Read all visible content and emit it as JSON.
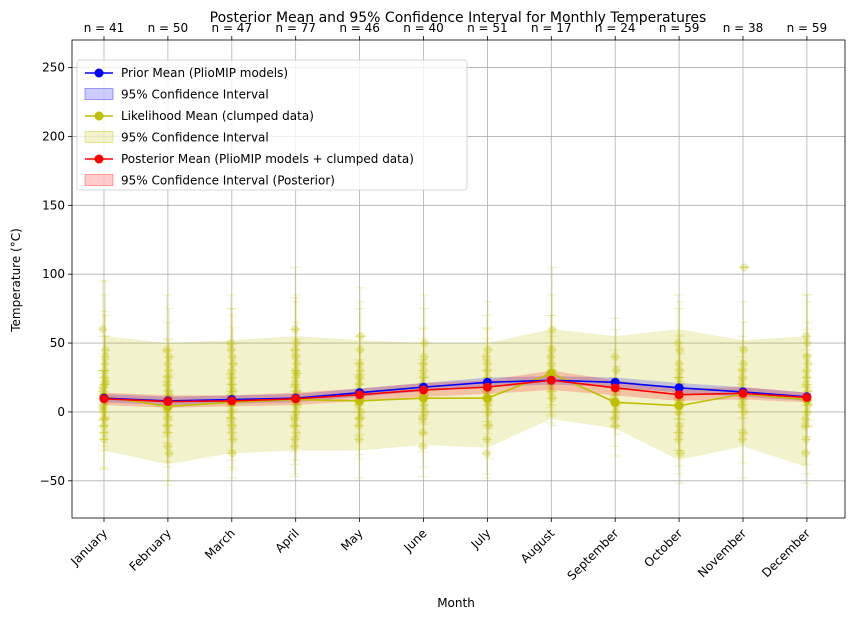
{
  "chart_data": {
    "type": "line",
    "title": "Posterior Mean and 95% Confidence Interval for Monthly Temperatures",
    "xlabel": "Month",
    "ylabel": "Temperature (°C)",
    "ylim": [
      -77,
      270
    ],
    "yticks": [
      -50,
      0,
      50,
      100,
      150,
      200,
      250
    ],
    "grid": true,
    "legend_position": "top-left",
    "categories": [
      "January",
      "February",
      "March",
      "April",
      "May",
      "June",
      "July",
      "August",
      "September",
      "October",
      "November",
      "December"
    ],
    "n_labels": [
      "n = 41",
      "n = 50",
      "n = 47",
      "n = 77",
      "n = 46",
      "n = 40",
      "n = 51",
      "n = 17",
      "n = 24",
      "n = 59",
      "n = 38",
      "n = 59"
    ],
    "series": [
      {
        "name": "Prior Mean (PlioMIP models)",
        "color": "#0000ff",
        "values": [
          10,
          8,
          9,
          10,
          14,
          18,
          21.5,
          23,
          21.5,
          17.5,
          14.5,
          11
        ],
        "ci_label": "95% Confidence Interval",
        "ci_lower": [
          7,
          5,
          6,
          7,
          11,
          15,
          18,
          20,
          18,
          14,
          11,
          8
        ],
        "ci_upper": [
          13,
          11,
          12,
          13,
          17,
          21,
          25,
          26,
          25,
          21,
          18,
          14
        ]
      },
      {
        "name": "Likelihood Mean (clumped data)",
        "color": "#bfbf00",
        "values": [
          11,
          4,
          7,
          9,
          8,
          10,
          10,
          28,
          7,
          4.5,
          13,
          9
        ],
        "ci_label": "95% Confidence Interval",
        "ci_lower": [
          -28,
          -38,
          -30,
          -28,
          -28,
          -24,
          -26,
          -5,
          -12,
          -35,
          -25,
          -40
        ],
        "ci_upper": [
          55,
          50,
          52,
          55,
          52,
          50,
          50,
          60,
          55,
          60,
          52,
          55
        ]
      },
      {
        "name": "Posterior Mean (PlioMIP models + clumped data)",
        "color": "#ff0000",
        "values": [
          9.5,
          7.5,
          8,
          9.5,
          12.5,
          16,
          18,
          23,
          17.5,
          12.5,
          13.5,
          10.5
        ],
        "ci_label": "95% Confidence Interval (Posterior)",
        "ci_lower": [
          5,
          3,
          4,
          5,
          8,
          11,
          13,
          16,
          12,
          8,
          9,
          7
        ],
        "ci_upper": [
          14,
          12,
          12,
          14,
          17,
          21,
          23,
          30,
          23,
          17,
          18,
          14
        ]
      }
    ],
    "observations": {
      "color": "#bfbf00",
      "samples": [
        [
          [
            10,
            20
          ],
          [
            5,
            25
          ],
          [
            -10,
            30
          ],
          [
            20,
            35
          ],
          [
            40,
            45
          ],
          [
            15,
            15
          ],
          [
            0,
            28
          ],
          [
            -20,
            22
          ],
          [
            30,
            40
          ],
          [
            8,
            12
          ],
          [
            60,
            35
          ],
          [
            12,
            18
          ],
          [
            -5,
            20
          ],
          [
            25,
            30
          ],
          [
            45,
            50
          ],
          [
            3,
            14
          ],
          [
            18,
            24
          ],
          [
            -15,
            26
          ],
          [
            35,
            38
          ],
          [
            22,
            16
          ]
        ],
        [
          [
            8,
            18
          ],
          [
            0,
            22
          ],
          [
            -25,
            28
          ],
          [
            15,
            30
          ],
          [
            40,
            35
          ],
          [
            5,
            14
          ],
          [
            -10,
            26
          ],
          [
            25,
            28
          ],
          [
            10,
            16
          ],
          [
            -30,
            20
          ],
          [
            45,
            40
          ],
          [
            20,
            24
          ],
          [
            -5,
            18
          ],
          [
            30,
            22
          ],
          [
            12,
            15
          ],
          [
            2,
            20
          ],
          [
            -15,
            25
          ],
          [
            35,
            30
          ]
        ],
        [
          [
            9,
            18
          ],
          [
            -5,
            25
          ],
          [
            20,
            30
          ],
          [
            40,
            35
          ],
          [
            -20,
            22
          ],
          [
            10,
            14
          ],
          [
            0,
            28
          ],
          [
            30,
            40
          ],
          [
            -30,
            18
          ],
          [
            15,
            20
          ],
          [
            50,
            35
          ],
          [
            5,
            12
          ],
          [
            25,
            24
          ],
          [
            -10,
            30
          ],
          [
            35,
            26
          ],
          [
            12,
            16
          ],
          [
            45,
            30
          ],
          [
            -15,
            20
          ]
        ],
        [
          [
            10,
            20
          ],
          [
            -20,
            25
          ],
          [
            30,
            30
          ],
          [
            50,
            35
          ],
          [
            5,
            15
          ],
          [
            -10,
            28
          ],
          [
            20,
            22
          ],
          [
            40,
            40
          ],
          [
            0,
            18
          ],
          [
            15,
            26
          ],
          [
            -25,
            22
          ],
          [
            60,
            45
          ],
          [
            25,
            20
          ],
          [
            8,
            14
          ],
          [
            35,
            30
          ],
          [
            -5,
            24
          ],
          [
            45,
            38
          ],
          [
            12,
            16
          ],
          [
            -15,
            20
          ],
          [
            28,
            25
          ]
        ],
        [
          [
            8,
            18
          ],
          [
            -10,
            24
          ],
          [
            25,
            30
          ],
          [
            45,
            35
          ],
          [
            0,
            16
          ],
          [
            15,
            20
          ],
          [
            -20,
            28
          ],
          [
            35,
            40
          ],
          [
            10,
            14
          ],
          [
            55,
            35
          ],
          [
            5,
            22
          ],
          [
            20,
            18
          ],
          [
            -5,
            26
          ],
          [
            30,
            25
          ],
          [
            12,
            15
          ]
        ],
        [
          [
            10,
            18
          ],
          [
            -15,
            25
          ],
          [
            25,
            28
          ],
          [
            40,
            35
          ],
          [
            0,
            16
          ],
          [
            15,
            20
          ],
          [
            -25,
            22
          ],
          [
            30,
            30
          ],
          [
            5,
            14
          ],
          [
            50,
            35
          ],
          [
            20,
            18
          ],
          [
            -5,
            24
          ],
          [
            35,
            26
          ],
          [
            12,
            14
          ]
        ],
        [
          [
            10,
            20
          ],
          [
            -20,
            25
          ],
          [
            30,
            30
          ],
          [
            45,
            35
          ],
          [
            0,
            16
          ],
          [
            15,
            22
          ],
          [
            -30,
            18
          ],
          [
            25,
            28
          ],
          [
            5,
            14
          ],
          [
            -10,
            24
          ],
          [
            40,
            30
          ],
          [
            20,
            18
          ],
          [
            35,
            26
          ],
          [
            8,
            15
          ]
        ],
        [
          [
            28,
            30
          ],
          [
            20,
            28
          ],
          [
            35,
            35
          ],
          [
            45,
            40
          ],
          [
            10,
            20
          ],
          [
            25,
            22
          ],
          [
            40,
            30
          ],
          [
            15,
            18
          ],
          [
            30,
            25
          ],
          [
            60,
            45
          ]
        ],
        [
          [
            7,
            18
          ],
          [
            20,
            25
          ],
          [
            -10,
            22
          ],
          [
            0,
            16
          ],
          [
            30,
            30
          ],
          [
            10,
            14
          ],
          [
            -5,
            20
          ],
          [
            40,
            28
          ],
          [
            5,
            15
          ],
          [
            15,
            18
          ]
        ],
        [
          [
            5,
            20
          ],
          [
            -20,
            25
          ],
          [
            25,
            30
          ],
          [
            45,
            35
          ],
          [
            -30,
            22
          ],
          [
            10,
            15
          ],
          [
            0,
            28
          ],
          [
            35,
            40
          ],
          [
            -10,
            18
          ],
          [
            20,
            22
          ],
          [
            50,
            35
          ],
          [
            15,
            16
          ],
          [
            -15,
            24
          ],
          [
            30,
            26
          ],
          [
            8,
            14
          ]
        ],
        [
          [
            13,
            18
          ],
          [
            30,
            25
          ],
          [
            -15,
            22
          ],
          [
            45,
            35
          ],
          [
            0,
            16
          ],
          [
            20,
            20
          ],
          [
            -20,
            28
          ],
          [
            10,
            14
          ],
          [
            35,
            30
          ],
          [
            105,
            0
          ],
          [
            5,
            18
          ],
          [
            25,
            22
          ]
        ],
        [
          [
            9,
            20
          ],
          [
            -20,
            25
          ],
          [
            30,
            30
          ],
          [
            50,
            35
          ],
          [
            5,
            15
          ],
          [
            -10,
            28
          ],
          [
            20,
            22
          ],
          [
            40,
            40
          ],
          [
            0,
            18
          ],
          [
            15,
            26
          ],
          [
            -30,
            22
          ],
          [
            55,
            30
          ],
          [
            25,
            20
          ],
          [
            8,
            14
          ],
          [
            35,
            30
          ],
          [
            -5,
            24
          ]
        ]
      ]
    }
  }
}
